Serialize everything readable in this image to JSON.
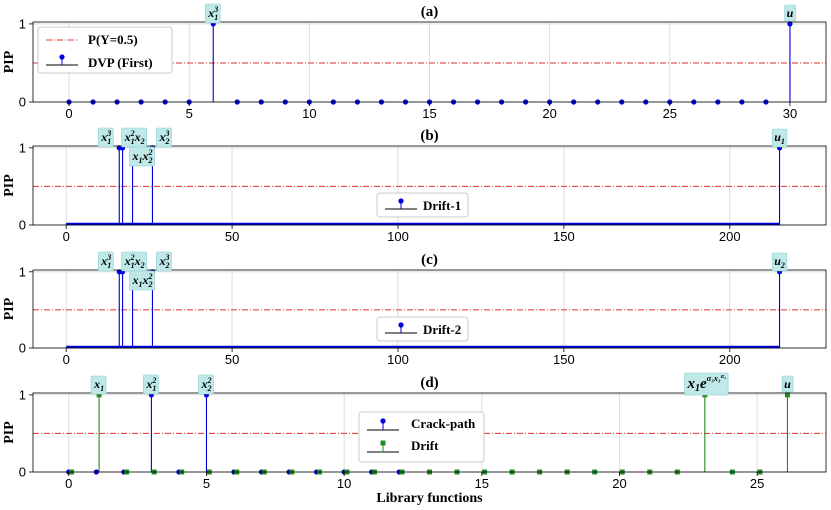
{
  "chart_data": [
    {
      "panel": "(a)",
      "type": "stem",
      "title": "(a)",
      "ylabel": "PIP",
      "xlabel": "",
      "xlim": [
        -1.5,
        31.5
      ],
      "ylim": [
        0,
        1.05
      ],
      "xticks": [
        0,
        5,
        10,
        15,
        20,
        25,
        30
      ],
      "yticks": [
        0,
        1
      ],
      "grid": true,
      "legend_position": "top-left",
      "threshold": {
        "name": "P(Y=0.5)",
        "value": 0.5,
        "color": "#e03030"
      },
      "series": [
        {
          "name": "DVP (First)",
          "color": "#0000dd",
          "marker": "circle",
          "x": [
            0,
            1,
            2,
            3,
            4,
            5,
            6,
            7,
            8,
            9,
            10,
            11,
            12,
            13,
            14,
            15,
            16,
            17,
            18,
            19,
            20,
            21,
            22,
            23,
            24,
            25,
            26,
            27,
            28,
            29,
            30
          ],
          "values": [
            0,
            0,
            0,
            0,
            0,
            0,
            1,
            0,
            0,
            0,
            0,
            0,
            0,
            0,
            0,
            0,
            0,
            0,
            0,
            0,
            0,
            0,
            0,
            0,
            0,
            0,
            0,
            0,
            0,
            0,
            1
          ]
        }
      ],
      "annotations": [
        {
          "x": 6,
          "text": "x₁³",
          "main": "x",
          "sub": "1",
          "sup": "3"
        },
        {
          "x": 30,
          "text": "u",
          "main": "u",
          "sub": "",
          "sup": ""
        }
      ]
    },
    {
      "panel": "(b)",
      "type": "stem",
      "title": "(b)",
      "ylabel": "PIP",
      "xlabel": "",
      "xlim": [
        -10,
        229
      ],
      "ylim": [
        0,
        1.05
      ],
      "xticks": [
        0,
        50,
        100,
        150,
        200
      ],
      "yticks": [
        0,
        1
      ],
      "grid": true,
      "legend_position": "lower center",
      "threshold": {
        "value": 0.5,
        "color": "#e03030"
      },
      "n_functions": 216,
      "series": [
        {
          "name": "Drift-1",
          "color": "#0000dd",
          "marker": "circle",
          "dense": true,
          "nonzero": [
            {
              "x": 16,
              "value": 1
            },
            {
              "x": 17,
              "value": 1
            },
            {
              "x": 20,
              "value": 1
            },
            {
              "x": 26,
              "value": 1
            },
            {
              "x": 215,
              "value": 1
            }
          ]
        }
      ],
      "annotations": [
        {
          "x": 16,
          "text": "x₁³",
          "main": "x",
          "sub": "1",
          "sup": "3",
          "row": "top"
        },
        {
          "x": 17,
          "text": "x₁²x₂",
          "row": "top"
        },
        {
          "x": 20,
          "text": "x₁x₂²",
          "row": "low"
        },
        {
          "x": 26,
          "text": "x₂³",
          "main": "x",
          "sub": "2",
          "sup": "3",
          "row": "top"
        },
        {
          "x": 215,
          "text": "u₁",
          "main": "u",
          "sub": "1",
          "sup": "",
          "row": "top"
        }
      ]
    },
    {
      "panel": "(c)",
      "type": "stem",
      "title": "(c)",
      "ylabel": "PIP",
      "xlabel": "",
      "xlim": [
        -10,
        229
      ],
      "ylim": [
        0,
        1.05
      ],
      "xticks": [
        0,
        50,
        100,
        150,
        200
      ],
      "yticks": [
        0,
        1
      ],
      "grid": true,
      "legend_position": "lower center",
      "threshold": {
        "value": 0.5,
        "color": "#e03030"
      },
      "n_functions": 216,
      "series": [
        {
          "name": "Drift-2",
          "color": "#0000dd",
          "marker": "circle",
          "dense": true,
          "nonzero": [
            {
              "x": 16,
              "value": 1
            },
            {
              "x": 17,
              "value": 1
            },
            {
              "x": 20,
              "value": 1
            },
            {
              "x": 26,
              "value": 1
            },
            {
              "x": 215,
              "value": 1
            }
          ]
        }
      ],
      "annotations": [
        {
          "x": 16,
          "text": "x₁³",
          "main": "x",
          "sub": "1",
          "sup": "3",
          "row": "top"
        },
        {
          "x": 17,
          "text": "x₁²x₂",
          "row": "top"
        },
        {
          "x": 20,
          "text": "x₁x₂²",
          "row": "low"
        },
        {
          "x": 26,
          "text": "x₂³",
          "main": "x",
          "sub": "2",
          "sup": "3",
          "row": "top"
        },
        {
          "x": 215,
          "text": "u₂",
          "main": "u",
          "sub": "2",
          "sup": "",
          "row": "top"
        }
      ]
    },
    {
      "panel": "(d)",
      "type": "stem",
      "title": "(d)",
      "ylabel": "PIP",
      "xlabel": "Library functions",
      "xlim": [
        -1.3,
        27.5
      ],
      "ylim": [
        0,
        1.05
      ],
      "xticks": [
        0,
        5,
        10,
        15,
        20,
        25
      ],
      "yticks": [
        0,
        1
      ],
      "grid": true,
      "legend_position": "center",
      "threshold": {
        "value": 0.5,
        "color": "#e03030"
      },
      "series": [
        {
          "name": "Crack-path",
          "color": "#0000dd",
          "marker": "circle",
          "x": [
            0,
            1,
            2,
            3,
            4,
            5,
            6,
            7,
            8,
            9,
            10,
            11,
            12
          ],
          "values": [
            0,
            0,
            0,
            1,
            0,
            1,
            0,
            0,
            0,
            0,
            0,
            0,
            0
          ]
        },
        {
          "name": "Drift",
          "color": "#228b22",
          "marker": "square",
          "x": [
            0.1,
            1.1,
            2.1,
            3.1,
            4.1,
            5.1,
            6.1,
            7.1,
            8.1,
            9.1,
            10.1,
            11.1,
            12.1,
            13.1,
            14.1,
            15.1,
            16.1,
            17.1,
            18.1,
            19.1,
            20.1,
            21.1,
            22.1,
            23.1,
            24.1,
            25.1,
            26.1
          ],
          "values": [
            0,
            1,
            0,
            0,
            0,
            0,
            0,
            0,
            0,
            0,
            0,
            0,
            0,
            0,
            0,
            0,
            0,
            0,
            0,
            0,
            0,
            0,
            0,
            1,
            0,
            0,
            1
          ]
        }
      ],
      "annotations": [
        {
          "x": 1.1,
          "text": "x₁",
          "main": "x",
          "sub": "1",
          "sup": ""
        },
        {
          "x": 3,
          "text": "x₁²",
          "main": "x",
          "sub": "1",
          "sup": "2"
        },
        {
          "x": 5,
          "text": "x₂²",
          "main": "x",
          "sub": "2",
          "sup": "2"
        },
        {
          "x": 23.1,
          "text": "x₁e^(α₃x₃^α₄)",
          "big": true
        },
        {
          "x": 26.1,
          "text": "u",
          "main": "u",
          "sub": "",
          "sup": ""
        }
      ]
    }
  ]
}
